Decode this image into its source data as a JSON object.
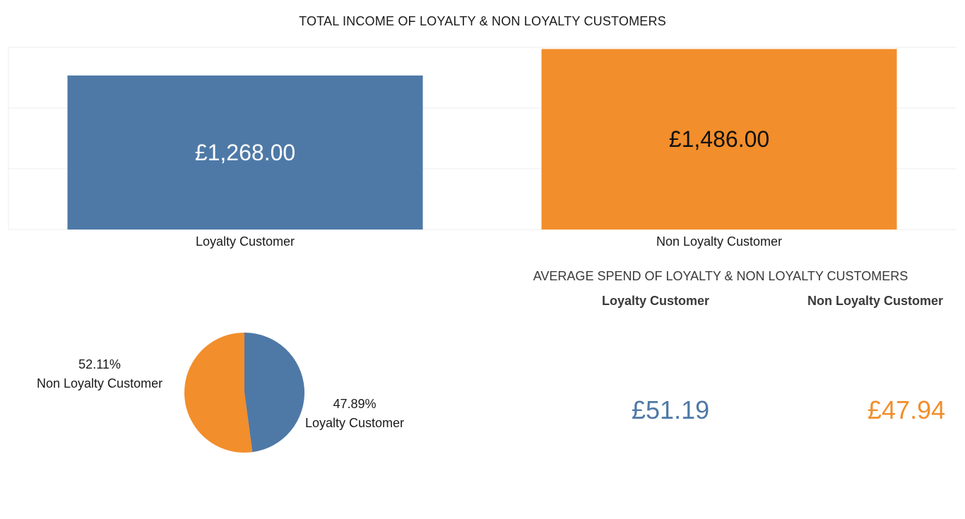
{
  "colors": {
    "loyalty": "#4e79a7",
    "non_loyalty": "#f28e2b",
    "grid": "#ececec"
  },
  "chart_data": [
    {
      "type": "bar",
      "title": "TOTAL INCOME OF LOYALTY & NON LOYALTY CUSTOMERS",
      "categories": [
        "Loyalty Customer",
        "Non Loyalty Customer"
      ],
      "values": [
        1268,
        1486
      ],
      "data_labels": [
        "£1,268.00",
        "£1,486.00"
      ],
      "ylim": [
        0,
        1500
      ],
      "grid": true,
      "xlabel": "",
      "ylabel": ""
    },
    {
      "type": "pie",
      "categories": [
        "Loyalty Customer",
        "Non Loyalty Customer"
      ],
      "values": [
        47.89,
        52.11
      ],
      "data_labels": [
        "47.89%",
        "52.11%"
      ]
    },
    {
      "type": "table",
      "title": "AVERAGE SPEND OF LOYALTY & NON LOYALTY CUSTOMERS",
      "categories": [
        "Loyalty Customer",
        "Non Loyalty Customer"
      ],
      "values": [
        51.19,
        47.94
      ],
      "data_labels": [
        "£51.19",
        "£47.94"
      ]
    }
  ]
}
